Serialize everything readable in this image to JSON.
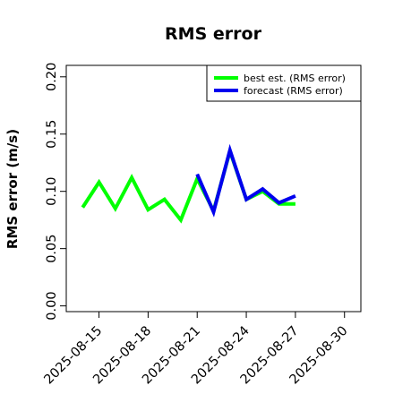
{
  "chart_data": {
    "type": "line",
    "title": "RMS error",
    "xlabel": "",
    "ylabel": "RMS error (m/s)",
    "x_axis_type": "date",
    "xlim": [
      "2025-08-13",
      "2025-08-31"
    ],
    "ylim": [
      -0.005,
      0.21
    ],
    "grid": false,
    "legend_position": "top-right",
    "x_ticks": [
      {
        "label": "2025-08-15",
        "date": "2025-08-15",
        "color": "#000000"
      },
      {
        "label": "2025-08-18",
        "date": "2025-08-18",
        "color": "#000000"
      },
      {
        "label": "2025-08-21",
        "date": "2025-08-21",
        "color": "#228b22"
      },
      {
        "label": "2025-08-24",
        "date": "2025-08-24",
        "color": "#000000"
      },
      {
        "label": "2025-08-27",
        "date": "2025-08-27",
        "color": "#000000"
      },
      {
        "label": "2025-08-30",
        "date": "2025-08-30",
        "color": "#000000"
      }
    ],
    "y_ticks": [
      {
        "label": "0.00",
        "value": 0.0
      },
      {
        "label": "0.05",
        "value": 0.05
      },
      {
        "label": "0.10",
        "value": 0.1
      },
      {
        "label": "0.15",
        "value": 0.15
      },
      {
        "label": "0.20",
        "value": 0.2
      }
    ],
    "series": [
      {
        "name": "best est. (RMS error)",
        "color": "#00ff00",
        "x": [
          "2025-08-14",
          "2025-08-15",
          "2025-08-16",
          "2025-08-17",
          "2025-08-18",
          "2025-08-19",
          "2025-08-20",
          "2025-08-21",
          "2025-08-22",
          "2025-08-23",
          "2025-08-24",
          "2025-08-25",
          "2025-08-26",
          "2025-08-27"
        ],
        "values": [
          0.086,
          0.108,
          0.085,
          0.112,
          0.084,
          0.093,
          0.075,
          0.111,
          0.083,
          0.135,
          0.093,
          0.1,
          0.089,
          0.089
        ]
      },
      {
        "name": "forecast (RMS error)",
        "color": "#0000ee",
        "x": [
          "2025-08-21",
          "2025-08-22",
          "2025-08-23",
          "2025-08-24",
          "2025-08-25",
          "2025-08-26",
          "2025-08-27"
        ],
        "values": [
          0.115,
          0.082,
          0.136,
          0.093,
          0.102,
          0.09,
          0.096
        ]
      }
    ]
  }
}
